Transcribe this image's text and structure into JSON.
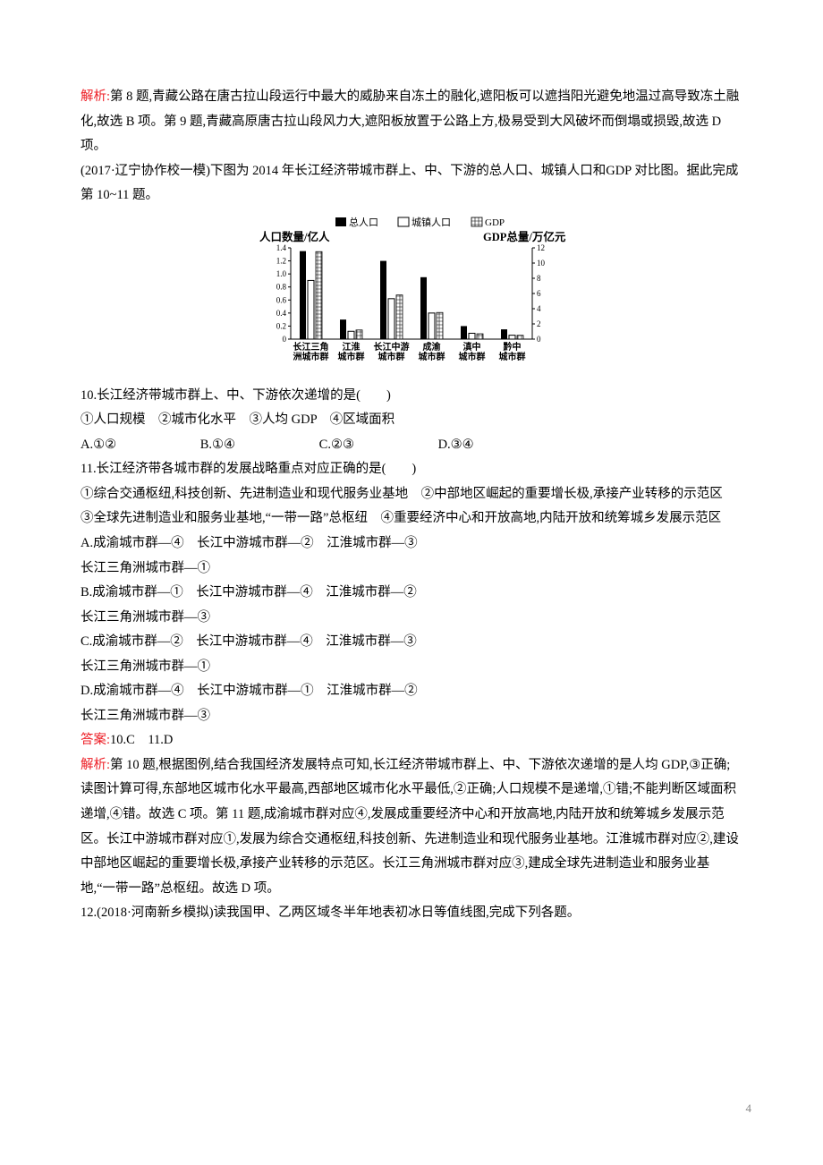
{
  "para1_prefix": "解析:",
  "para1_body": "第 8 题,青藏公路在唐古拉山段运行中最大的威胁来自冻土的融化,遮阳板可以遮挡阳光避免地温过高导致冻土融化,故选 B 项。第 9 题,青藏高原唐古拉山段风力大,遮阳板放置于公路上方,极易受到大风破坏而倒塌或损毁,故选 D 项。",
  "para2": "(2017·辽宁协作校一模)下图为 2014 年长江经济带城市群上、中、下游的总人口、城镇人口和GDP 对比图。据此完成第 10~11 题。",
  "chart": {
    "type": "bar",
    "legend": [
      "总人口",
      "城镇人口",
      "GDP"
    ],
    "left_axis_title": "人口数量/亿人",
    "right_axis_title": "GDP总量/万亿元",
    "left_ticks": [
      "0",
      "0.2",
      "0.4",
      "0.6",
      "0.8",
      "1.0",
      "1.2",
      "1.4"
    ],
    "right_ticks": [
      "0",
      "2",
      "4",
      "6",
      "8",
      "10",
      "12"
    ],
    "left_max": 1.4,
    "right_max": 12,
    "categories": [
      "长江三角\n洲城市群",
      "江淮\n城市群",
      "长江中游\n城市群",
      "成渝\n城市群",
      "滇中\n城市群",
      "黔中\n城市群"
    ],
    "series": {
      "total_pop": [
        1.35,
        0.3,
        1.2,
        0.95,
        0.2,
        0.15
      ],
      "urban_pop": [
        0.9,
        0.12,
        0.62,
        0.4,
        0.09,
        0.06
      ],
      "gdp": [
        11.5,
        1.2,
        5.8,
        3.5,
        0.7,
        0.5
      ]
    },
    "colors": {
      "total_pop_fill": "#000000",
      "urban_pop_fill": "#ffffff",
      "urban_pop_stroke": "#000000",
      "gdp_pattern_bg": "#ffffff",
      "gdp_pattern_fg": "#000000",
      "axis": "#000000",
      "text": "#000000"
    },
    "font_size_label": 11,
    "font_size_axis_title": 12.5
  },
  "q10": {
    "stem": "10.长江经济带城市群上、中、下游依次递增的是(　　)",
    "line2": "①人口规模　②城市化水平　③人均 GDP　④区域面积",
    "opts": {
      "A": "A.①②",
      "B": "B.①④",
      "C": "C.②③",
      "D": "D.③④"
    }
  },
  "q11": {
    "stem": "11.长江经济带各城市群的发展战略重点对应正确的是(　　)",
    "body": "①综合交通枢纽,科技创新、先进制造业和现代服务业基地　②中部地区崛起的重要增长极,承接产业转移的示范区　③全球先进制造业和服务业基地,“一带一路”总枢纽　④重要经济中心和开放高地,内陆开放和统筹城乡发展示范区",
    "optA1": "A.成渝城市群—④　长江中游城市群—②　江淮城市群—③",
    "optA2": "长江三角洲城市群—①",
    "optB1": "B.成渝城市群—①　长江中游城市群—④　江淮城市群—②",
    "optB2": "长江三角洲城市群—③",
    "optC1": "C.成渝城市群—②　长江中游城市群—④　江淮城市群—③",
    "optC2": "长江三角洲城市群—①",
    "optD1": "D.成渝城市群—④　长江中游城市群—①　江淮城市群—②",
    "optD2": "长江三角洲城市群—③"
  },
  "answer_prefix": "答案:",
  "answer_body": "10.C　11.D",
  "explain_prefix": "解析:",
  "explain_body": "第 10 题,根据图例,结合我国经济发展特点可知,长江经济带城市群上、中、下游依次递增的是人均 GDP,③正确;读图计算可得,东部地区城市化水平最高,西部地区城市化水平最低,②正确;人口规模不是递增,①错;不能判断区域面积递增,④错。故选 C 项。第 11 题,成渝城市群对应④,发展成重要经济中心和开放高地,内陆开放和统筹城乡发展示范区。长江中游城市群对应①,发展为综合交通枢纽,科技创新、先进制造业和现代服务业基地。江淮城市群对应②,建设中部地区崛起的重要增长极,承接产业转移的示范区。长江三角洲城市群对应③,建成全球先进制造业和服务业基地,“一带一路”总枢纽。故选 D 项。",
  "q12": "12.(2018·河南新乡模拟)读我国甲、乙两区域冬半年地表初冰日等值线图,完成下列各题。",
  "page_number": "4"
}
